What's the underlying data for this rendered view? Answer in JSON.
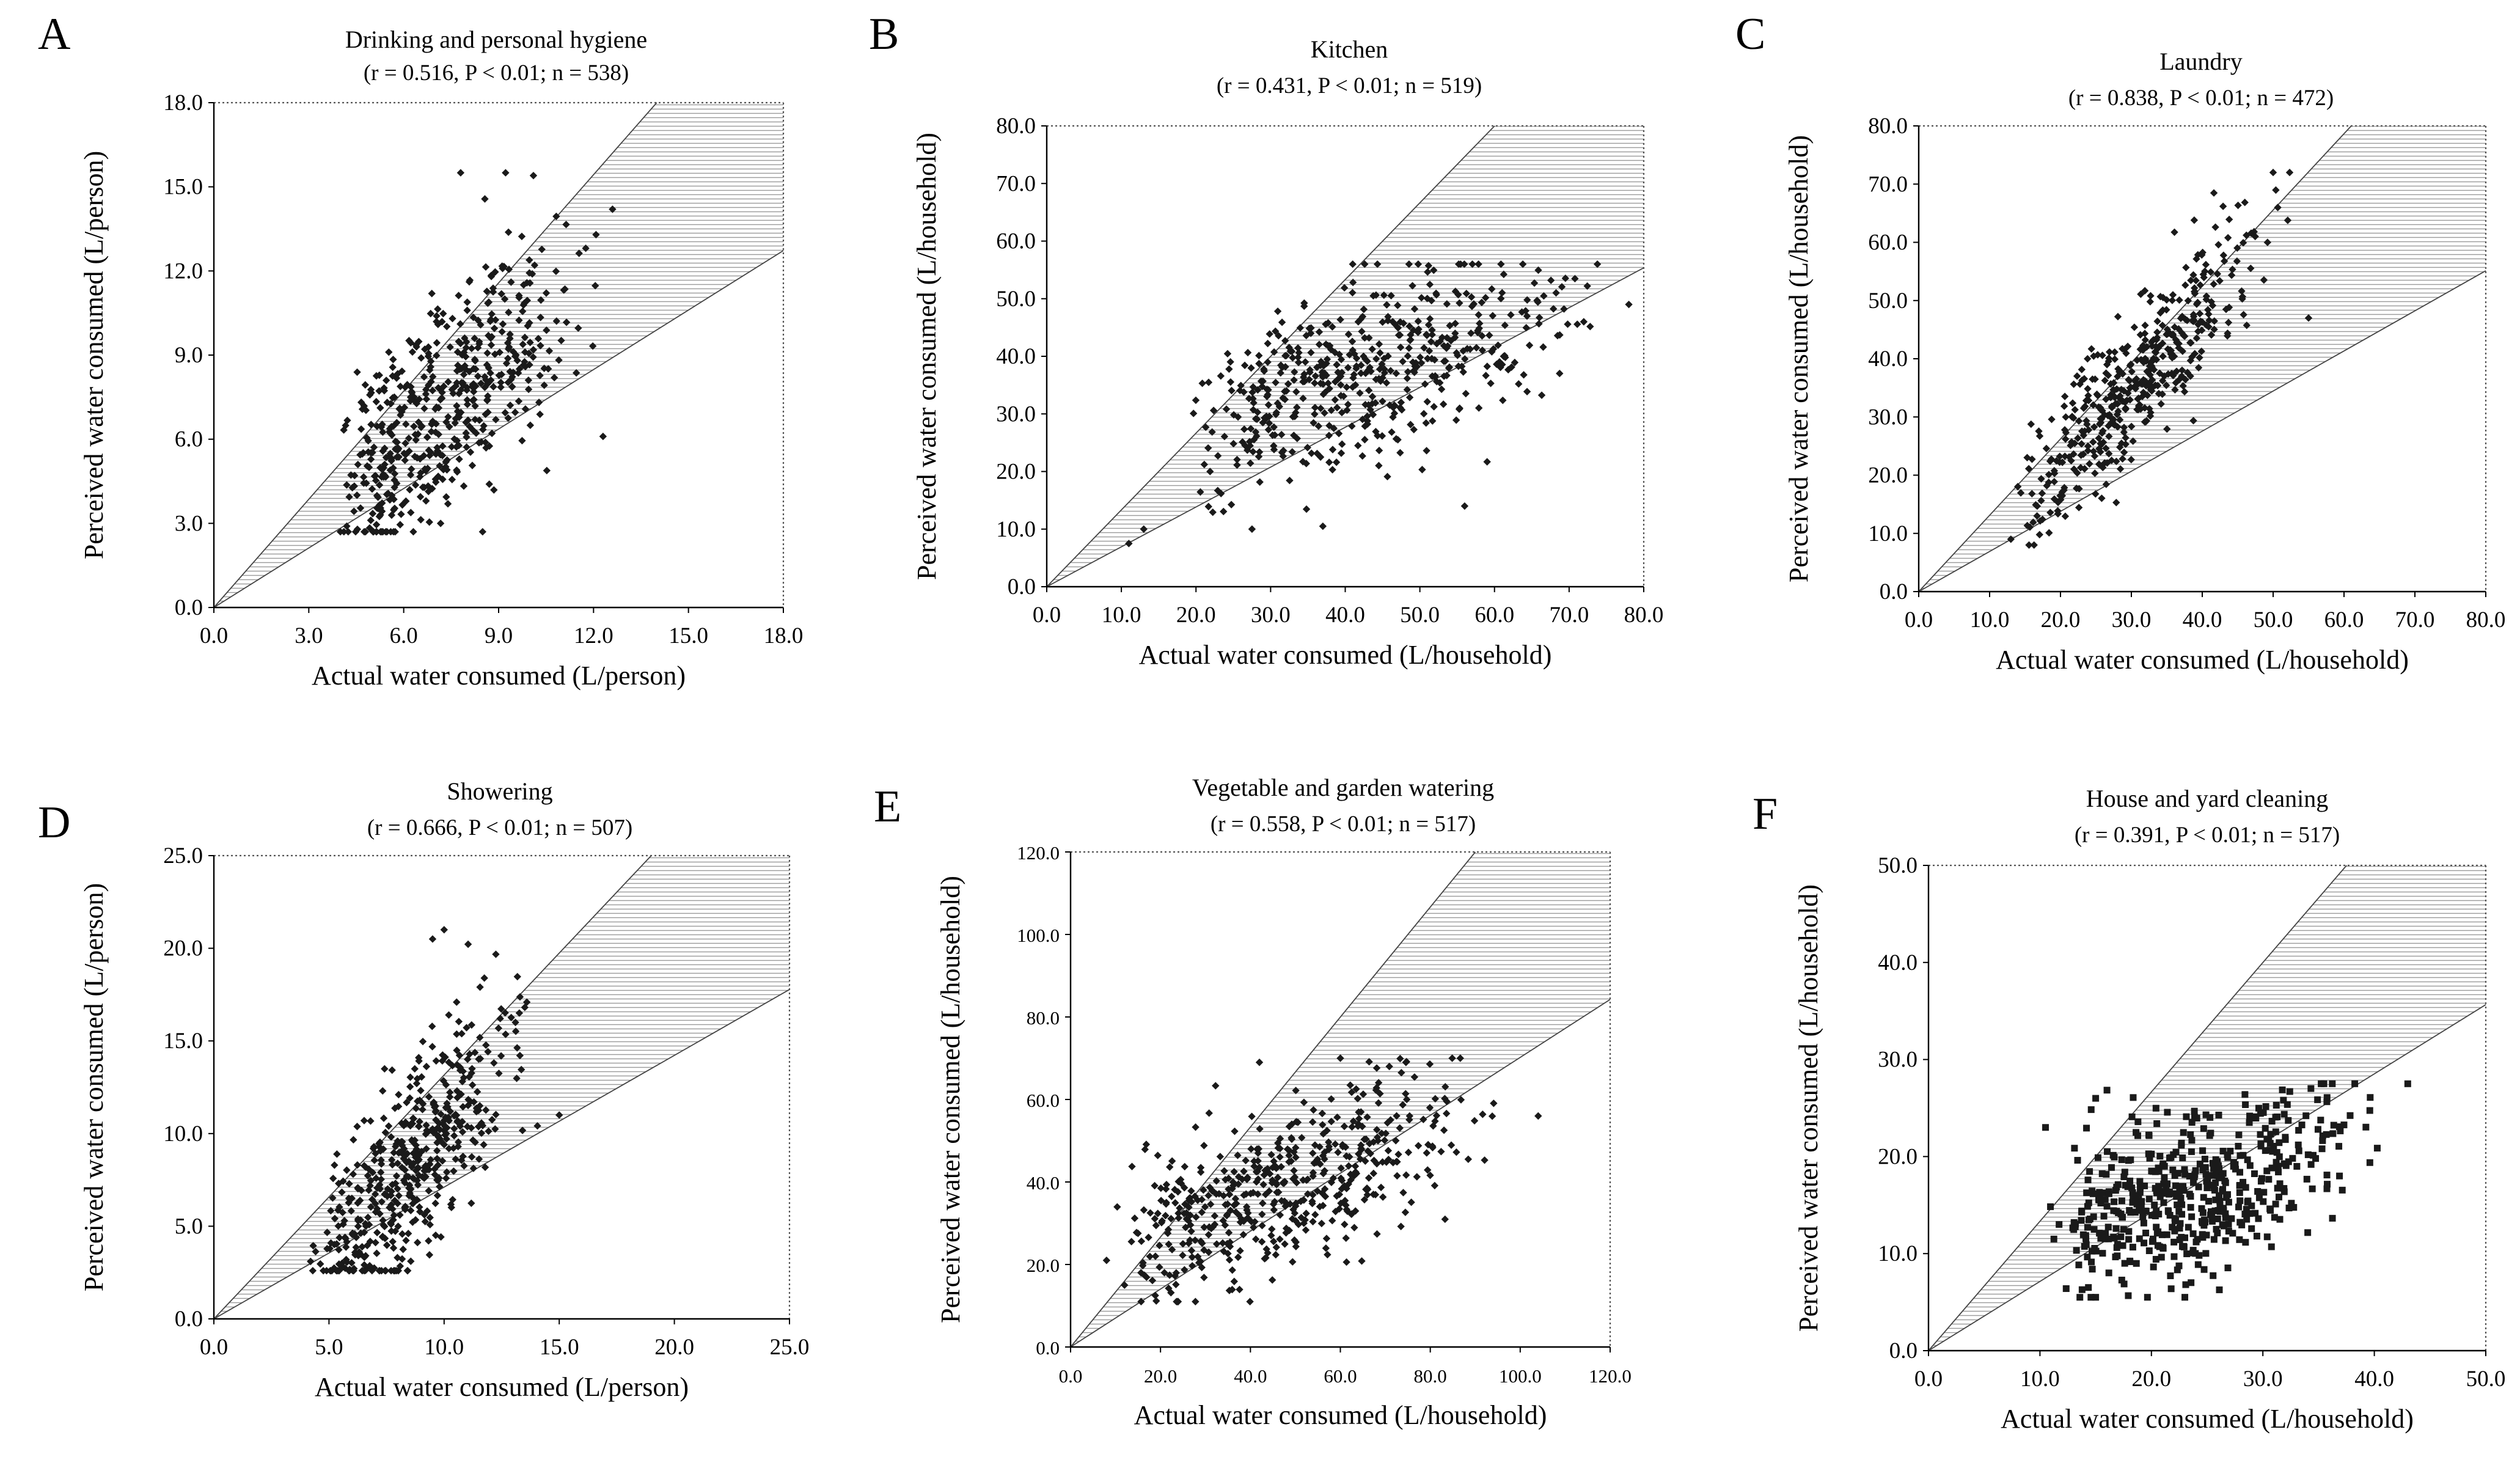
{
  "chart_data": [
    {
      "panel": "A",
      "type": "scatter",
      "title": "Drinking and personal hygiene",
      "stats": "(r = 0.516, P < 0.01; n = 538)",
      "xlabel": "Actual water consumed (L/person)",
      "ylabel": "Perceived water consumed (L/person)",
      "xlim": [
        0,
        18
      ],
      "ylim": [
        0,
        18
      ],
      "ticks": [
        "0.0",
        "3.0",
        "6.0",
        "9.0",
        "12.0",
        "15.0",
        "18.0"
      ],
      "band_slopes": [
        1.286,
        0.707
      ],
      "cloud": {
        "n": 538,
        "seed": 11,
        "xmin": 3.7,
        "xmax": 12.6,
        "mean_y": [
          1.0,
          0.0
        ],
        "sd": 1.9,
        "ymin": 2.7,
        "ymax": 15.5,
        "marker": "diamond"
      },
      "highlight": [
        [
          7.8,
          15.5
        ],
        [
          10.1,
          15.4
        ],
        [
          12.6,
          14.2
        ],
        [
          4.2,
          2.9
        ],
        [
          12.3,
          6.1
        ]
      ]
    },
    {
      "panel": "B",
      "type": "scatter",
      "title": "Kitchen",
      "stats": "(r = 0.431, P < 0.01; n = 519)",
      "xlabel": "Actual water consumed (L/household)",
      "ylabel": "Perceived water consumed (L/household)",
      "xlim": [
        0,
        80
      ],
      "ylim": [
        0,
        80
      ],
      "ticks": [
        "0.0",
        "10.0",
        "20.0",
        "30.0",
        "40.0",
        "50.0",
        "60.0",
        "70.0",
        "80.0"
      ],
      "band_slopes": [
        1.333,
        0.692
      ],
      "cloud": {
        "n": 519,
        "seed": 23,
        "xmin": 19,
        "xmax": 78,
        "mean_y": [
          0.38,
          20.5
        ],
        "sd": 7.5,
        "ymin": 10,
        "ymax": 56,
        "marker": "diamond"
      },
      "highlight": [
        [
          11,
          7.5
        ],
        [
          13,
          10
        ],
        [
          37,
          10.5
        ],
        [
          56,
          14
        ],
        [
          41,
          56
        ],
        [
          78,
          49
        ]
      ]
    },
    {
      "panel": "C",
      "type": "scatter",
      "title": "Laundry",
      "stats": "(r = 0.838, P < 0.01; n = 472)",
      "xlabel": "Actual water consumed (L/household)",
      "ylabel": "Perceived water consumed (L/household)",
      "xlim": [
        0,
        80
      ],
      "ylim": [
        0,
        80
      ],
      "ticks": [
        "0.0",
        "10.0",
        "20.0",
        "30.0",
        "40.0",
        "50.0",
        "60.0",
        "70.0",
        "80.0"
      ],
      "band_slopes": [
        1.311,
        0.689
      ],
      "cloud": {
        "n": 472,
        "seed": 37,
        "xmin": 13,
        "xmax": 55,
        "mean_y": [
          1.32,
          -4.5
        ],
        "sd": 6.0,
        "ymin": 8,
        "ymax": 72,
        "marker": "diamond"
      },
      "highlight": [
        [
          50,
          72
        ],
        [
          13,
          9
        ],
        [
          55,
          47
        ]
      ]
    },
    {
      "panel": "D",
      "type": "scatter",
      "title": "Showering",
      "stats": "(r = 0.666, P < 0.01; n = 507)",
      "xlabel": "Actual water consumed (L/person)",
      "ylabel": "Perceived water consumed (L/person)",
      "xlim": [
        0,
        25
      ],
      "ylim": [
        0,
        25
      ],
      "ticks": [
        "0.0",
        "5.0",
        "10.0",
        "15.0",
        "20.0",
        "25.0"
      ],
      "band_slopes": [
        1.316,
        0.711
      ],
      "cloud": {
        "n": 507,
        "seed": 41,
        "xmin": 4.0,
        "xmax": 15.0,
        "mean_y": [
          1.33,
          -3.0
        ],
        "sd": 2.6,
        "ymin": 2.6,
        "ymax": 21,
        "marker": "diamond"
      },
      "highlight": [
        [
          10,
          21
        ],
        [
          9.5,
          20.5
        ],
        [
          4.2,
          3.1
        ],
        [
          15,
          11
        ]
      ]
    },
    {
      "panel": "E",
      "type": "scatter",
      "title": "Vegetable and garden watering",
      "stats": "(r = 0.558, P < 0.01; n = 517)",
      "xlabel": "Actual water consumed (L/household)",
      "ylabel": "Perceived water consumed (L/household)",
      "xlim": [
        0,
        120
      ],
      "ylim": [
        0,
        120
      ],
      "ticks": [
        "0.0",
        "20.0",
        "40.0",
        "60.0",
        "80.0",
        "100.0",
        "120.0"
      ],
      "band_slopes": [
        1.333,
        0.702
      ],
      "cloud": {
        "n": 517,
        "seed": 53,
        "xmin": 8,
        "xmax": 104,
        "mean_y": [
          0.42,
          19.0
        ],
        "sd": 9.5,
        "ymin": 11,
        "ymax": 70,
        "marker": "diamond"
      },
      "highlight": [
        [
          8,
          21
        ],
        [
          12,
          15
        ],
        [
          42,
          69
        ],
        [
          60,
          70
        ],
        [
          104,
          56
        ]
      ]
    },
    {
      "panel": "F",
      "type": "scatter",
      "title": "House and yard cleaning",
      "stats": "(r =  0.391, P < 0.01; n = 517)",
      "xlabel": "Actual water consumed (L/household)",
      "ylabel": "Perceived water consumed (L/household)",
      "xlim": [
        0,
        50
      ],
      "ylim": [
        0,
        50
      ],
      "ticks": [
        "0.0",
        "10.0",
        "20.0",
        "30.0",
        "40.0",
        "50.0"
      ],
      "band_slopes": [
        1.333,
        0.713
      ],
      "cloud": {
        "n": 517,
        "seed": 67,
        "xmin": 10.5,
        "xmax": 43,
        "mean_y": [
          0.36,
          7.7
        ],
        "sd": 4.2,
        "ymin": 5.5,
        "ymax": 27.5,
        "marker": "square"
      },
      "highlight": [
        [
          10.5,
          23
        ],
        [
          43,
          27.5
        ],
        [
          23,
          5.5
        ],
        [
          15,
          26
        ]
      ]
    }
  ]
}
